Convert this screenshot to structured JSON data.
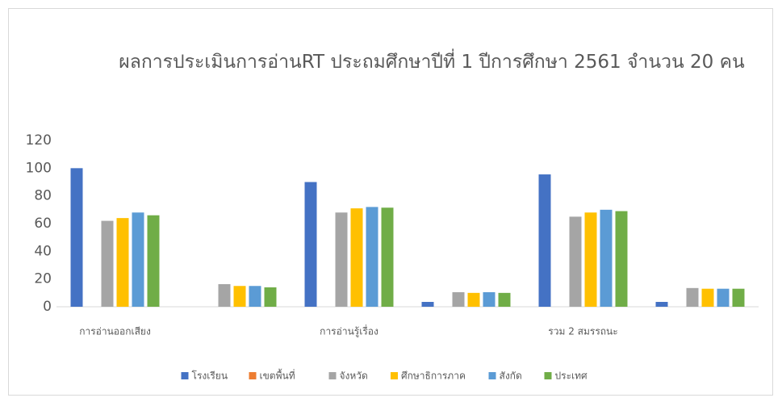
{
  "chart_data": {
    "type": "bar",
    "title": "ผลการประเมินการอ่านRT ประถมศึกษาปีที่ 1 ปีการศึกษา 2561 จำนวน 20 คน",
    "categories": [
      "การอ่านออกเสียง",
      null,
      "การอ่านรู้เรื่อง",
      null,
      "รวม 2 สมรรถนะ",
      null
    ],
    "series": [
      {
        "name": "โรงเรียน",
        "color": "#4472c4",
        "values": [
          100,
          0,
          90,
          3.5,
          95.5,
          3.5
        ]
      },
      {
        "name": "เขตพื้นที่",
        "color": "#ed7d31",
        "values": [
          0,
          0,
          0,
          0,
          0,
          0
        ]
      },
      {
        "name": "จังหวัด",
        "color": "#a5a5a5",
        "values": [
          62,
          16.3,
          68,
          10.5,
          65,
          13.5
        ]
      },
      {
        "name": "ศึกษาธิการภาค",
        "color": "#ffc000",
        "values": [
          64,
          15,
          71,
          10,
          68,
          13
        ]
      },
      {
        "name": "สังกัด",
        "color": "#5b9bd5",
        "values": [
          68,
          15,
          72,
          10.5,
          70,
          13
        ]
      },
      {
        "name": "ประเทศ",
        "color": "#70ad47",
        "values": [
          66,
          14,
          71.5,
          10,
          69,
          13
        ]
      }
    ],
    "ylim": [
      0,
      120
    ],
    "yticks": [
      0,
      20,
      40,
      60,
      80,
      100,
      120
    ],
    "grid": false,
    "legend": "bottom"
  }
}
